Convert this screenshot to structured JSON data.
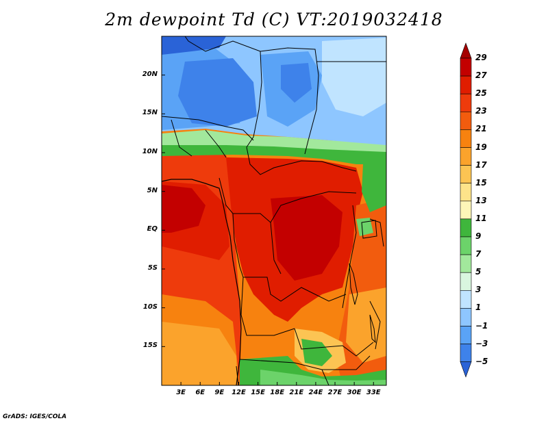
{
  "title": "2m dewpoint Td (C) VT:2019032418",
  "credit": "GrADS: IGES/COLA",
  "lat_ticks": [
    {
      "label": "20N",
      "lat": 20
    },
    {
      "label": "15N",
      "lat": 15
    },
    {
      "label": "10N",
      "lat": 10
    },
    {
      "label": "5N",
      "lat": 5
    },
    {
      "label": "EQ",
      "lat": 0
    },
    {
      "label": "5S",
      "lat": -5
    },
    {
      "label": "10S",
      "lat": -10
    },
    {
      "label": "15S",
      "lat": -15
    }
  ],
  "lon_ticks": [
    {
      "label": "3E",
      "lon": 3
    },
    {
      "label": "6E",
      "lon": 6
    },
    {
      "label": "9E",
      "lon": 9
    },
    {
      "label": "12E",
      "lon": 12
    },
    {
      "label": "15E",
      "lon": 15
    },
    {
      "label": "18E",
      "lon": 18
    },
    {
      "label": "21E",
      "lon": 21
    },
    {
      "label": "24E",
      "lon": 24
    },
    {
      "label": "27E",
      "lon": 27
    },
    {
      "label": "30E",
      "lon": 30
    },
    {
      "label": "33E",
      "lon": 33
    }
  ],
  "colorbar": {
    "labels": [
      "29",
      "27",
      "25",
      "23",
      "21",
      "19",
      "17",
      "15",
      "13",
      "11",
      "9",
      "7",
      "5",
      "3",
      "1",
      "−1",
      "−3",
      "−5"
    ],
    "colors": [
      "#a50000",
      "#c30000",
      "#e01d00",
      "#ee3b0c",
      "#f25c0e",
      "#f7820f",
      "#fba32c",
      "#fcc453",
      "#fde38a",
      "#fdf6b8",
      "#3fb63c",
      "#6cd36a",
      "#a2e89c",
      "#d9f6df",
      "#c0e4ff",
      "#8ec6ff",
      "#5aa3f6",
      "#3e82ea",
      "#2a63d7"
    ]
  },
  "map": {
    "lon_range": [
      0,
      35
    ],
    "lat_range": [
      -20,
      25
    ]
  }
}
